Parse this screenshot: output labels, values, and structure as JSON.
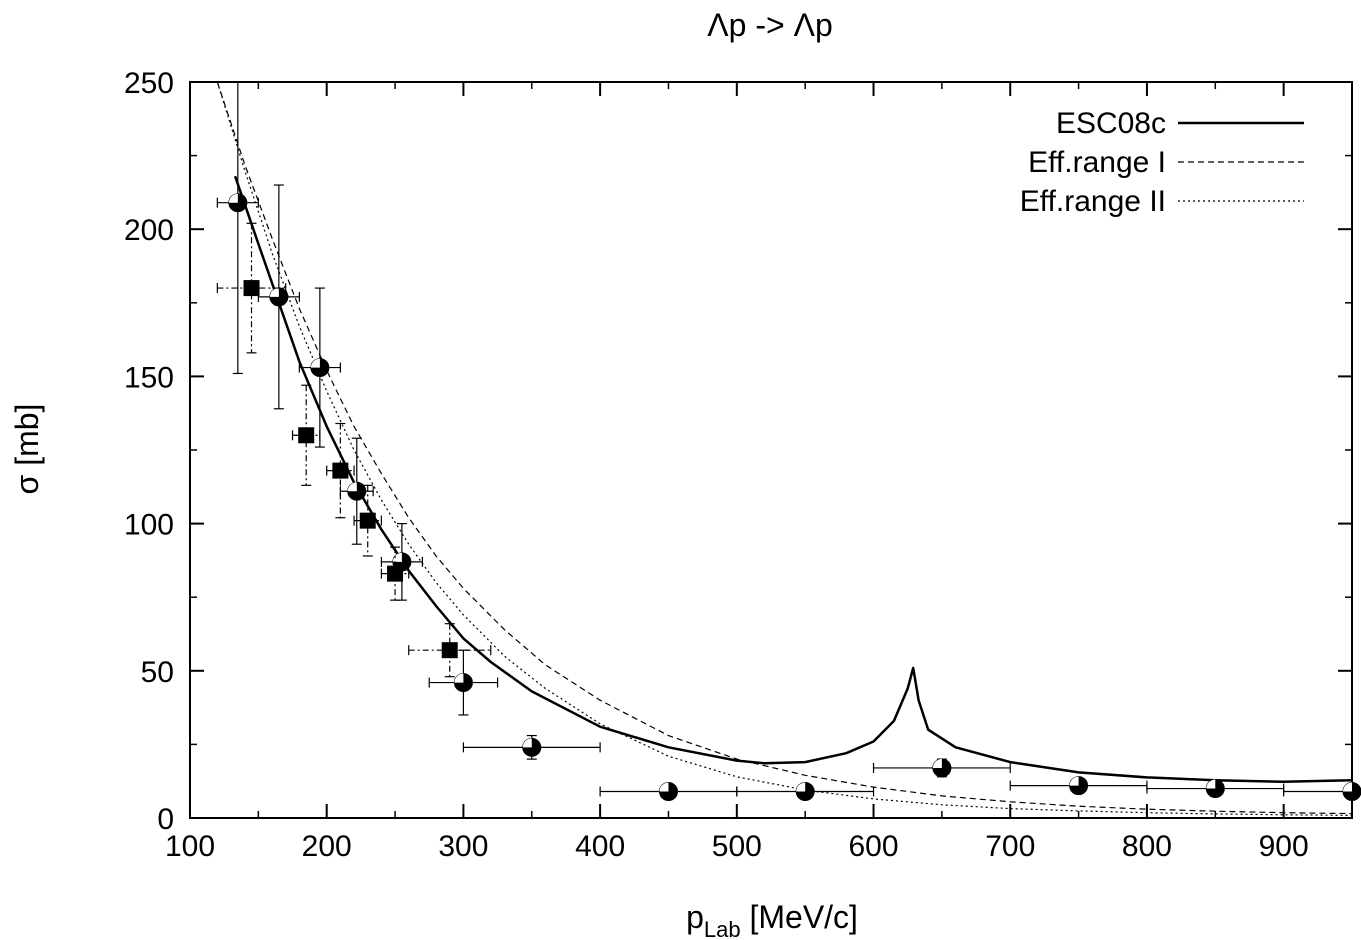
{
  "chart_data": {
    "type": "scatter",
    "title": "Λp -> Λp",
    "xlabel_main": "p",
    "xlabel_sub": "Lab",
    "xlabel_unit": " [MeV/c]",
    "ylabel": "σ [mb]",
    "xlim": [
      100,
      950
    ],
    "ylim": [
      0,
      250
    ],
    "x_ticks": [
      100,
      200,
      300,
      400,
      500,
      600,
      700,
      800,
      900
    ],
    "y_ticks": [
      0,
      50,
      100,
      150,
      200,
      250
    ],
    "grid": false,
    "legend_position": "top-right",
    "curves": [
      {
        "name": "ESC08c",
        "style": "solid",
        "points": [
          [
            133,
            218
          ],
          [
            150,
            195
          ],
          [
            165,
            175
          ],
          [
            180,
            155
          ],
          [
            200,
            133
          ],
          [
            220,
            114
          ],
          [
            240,
            98
          ],
          [
            260,
            84
          ],
          [
            280,
            72
          ],
          [
            300,
            61
          ],
          [
            320,
            53
          ],
          [
            350,
            43
          ],
          [
            400,
            31
          ],
          [
            450,
            24
          ],
          [
            500,
            19.5
          ],
          [
            520,
            18.6
          ],
          [
            550,
            19
          ],
          [
            580,
            22
          ],
          [
            600,
            26
          ],
          [
            615,
            33
          ],
          [
            625,
            44
          ],
          [
            629,
            51
          ],
          [
            633,
            40
          ],
          [
            640,
            30
          ],
          [
            660,
            24
          ],
          [
            700,
            19
          ],
          [
            750,
            15.5
          ],
          [
            800,
            13.8
          ],
          [
            850,
            12.8
          ],
          [
            900,
            12.3
          ],
          [
            950,
            12.8
          ]
        ]
      },
      {
        "name": "Eff.range I",
        "style": "dashed",
        "points": [
          [
            120,
            250
          ],
          [
            140,
            222
          ],
          [
            160,
            197
          ],
          [
            180,
            173
          ],
          [
            200,
            152
          ],
          [
            220,
            133
          ],
          [
            240,
            117
          ],
          [
            260,
            102
          ],
          [
            280,
            89
          ],
          [
            300,
            78
          ],
          [
            330,
            64
          ],
          [
            360,
            52
          ],
          [
            400,
            40
          ],
          [
            450,
            28
          ],
          [
            500,
            20
          ],
          [
            550,
            14.5
          ],
          [
            600,
            10.5
          ],
          [
            650,
            7.5
          ],
          [
            700,
            5.5
          ],
          [
            750,
            4
          ],
          [
            800,
            3
          ],
          [
            850,
            2.3
          ],
          [
            900,
            1.8
          ],
          [
            950,
            1.5
          ]
        ]
      },
      {
        "name": "Eff.range II",
        "style": "dotted",
        "points": [
          [
            120,
            250
          ],
          [
            140,
            220
          ],
          [
            160,
            192
          ],
          [
            180,
            167
          ],
          [
            200,
            145
          ],
          [
            220,
            125
          ],
          [
            240,
            108
          ],
          [
            260,
            93
          ],
          [
            280,
            80
          ],
          [
            300,
            69
          ],
          [
            330,
            55
          ],
          [
            360,
            44
          ],
          [
            400,
            32
          ],
          [
            450,
            21
          ],
          [
            500,
            14
          ],
          [
            550,
            9.5
          ],
          [
            600,
            6.5
          ],
          [
            650,
            4.5
          ],
          [
            700,
            3.2
          ],
          [
            750,
            2.4
          ],
          [
            800,
            1.8
          ],
          [
            850,
            1.4
          ],
          [
            900,
            1.1
          ],
          [
            950,
            0.9
          ]
        ]
      }
    ],
    "series": [
      {
        "marker": "half-filled-circle",
        "points": [
          {
            "x": 135,
            "y": 209,
            "xerr": [
              15,
              15
            ],
            "yerr": [
              58,
              58
            ]
          },
          {
            "x": 165,
            "y": 177,
            "xerr": [
              15,
              15
            ],
            "yerr": [
              38,
              38
            ]
          },
          {
            "x": 195,
            "y": 153,
            "xerr": [
              15,
              15
            ],
            "yerr": [
              27,
              27
            ]
          },
          {
            "x": 222,
            "y": 111,
            "xerr": [
              12,
              12
            ],
            "yerr": [
              18,
              18
            ]
          },
          {
            "x": 255,
            "y": 87,
            "xerr": [
              15,
              15
            ],
            "yerr": [
              13,
              13
            ]
          },
          {
            "x": 300,
            "y": 46,
            "xerr": [
              25,
              25
            ],
            "yerr": [
              11,
              11
            ]
          },
          {
            "x": 350,
            "y": 24,
            "xerr": [
              50,
              50
            ],
            "yerr": [
              4,
              4
            ]
          },
          {
            "x": 450,
            "y": 9,
            "xerr": [
              50,
              50
            ],
            "yerr": [
              1.5,
              1.5
            ]
          },
          {
            "x": 550,
            "y": 9,
            "xerr": [
              50,
              50
            ],
            "yerr": [
              1.5,
              1.5
            ]
          },
          {
            "x": 650,
            "y": 17,
            "xerr": [
              50,
              50
            ],
            "yerr": [
              3,
              3
            ]
          },
          {
            "x": 750,
            "y": 11,
            "xerr": [
              50,
              50
            ],
            "yerr": [
              2,
              2
            ]
          },
          {
            "x": 850,
            "y": 10,
            "xerr": [
              50,
              50
            ],
            "yerr": [
              2,
              2
            ]
          },
          {
            "x": 950,
            "y": 9,
            "xerr": [
              50,
              0
            ],
            "yerr": [
              2,
              2
            ]
          }
        ]
      },
      {
        "marker": "filled-square",
        "points": [
          {
            "x": 145,
            "y": 180,
            "xerr": [
              25,
              25
            ],
            "yerr": [
              22,
              22
            ]
          },
          {
            "x": 185,
            "y": 130,
            "xerr": [
              10,
              10
            ],
            "yerr": [
              17,
              17
            ]
          },
          {
            "x": 210,
            "y": 118,
            "xerr": [
              10,
              10
            ],
            "yerr": [
              16,
              16
            ]
          },
          {
            "x": 230,
            "y": 101,
            "xerr": [
              10,
              10
            ],
            "yerr": [
              12,
              12
            ]
          },
          {
            "x": 250,
            "y": 83,
            "xerr": [
              10,
              10
            ],
            "yerr": [
              9,
              9
            ]
          },
          {
            "x": 290,
            "y": 57,
            "xerr": [
              30,
              30
            ],
            "yerr": [
              9,
              9
            ]
          }
        ]
      }
    ]
  }
}
